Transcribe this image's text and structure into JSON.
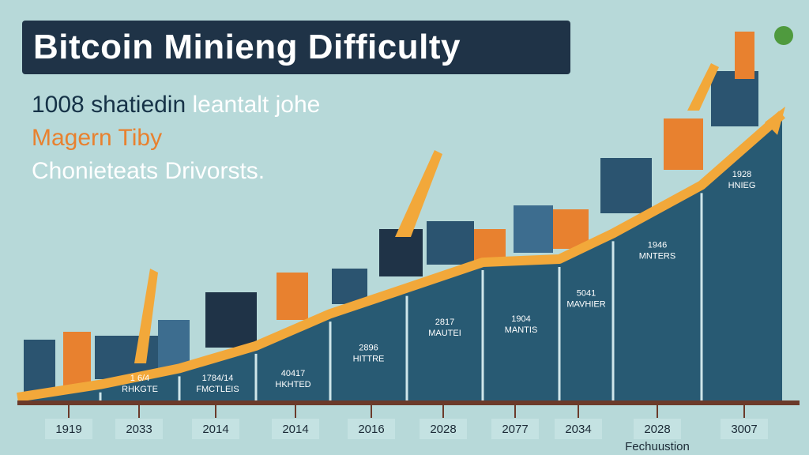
{
  "header": {
    "title": "Bitcoin Minieng Difficulty",
    "subtitle_line1_dark": "1008 shatiedin",
    "subtitle_line1_light": "leantalt johe",
    "subtitle_line2": "Magern Tiby",
    "subtitle_line3": "Chonieteats Drivorsts."
  },
  "colors": {
    "background": "#b7d9d9",
    "title_bg": "#1f3347",
    "area": "#285a73",
    "trend_line": "#f2a83a",
    "accent_orange": "#e8812f",
    "axis": "#6b3a2a"
  },
  "chart_data": {
    "type": "area",
    "title": "Bitcoin Minieng Difficulty",
    "categories": [
      "1919",
      "2033",
      "2014",
      "2014",
      "2016",
      "2028",
      "2077",
      "2034",
      "2028",
      "3007"
    ],
    "values": [
      4,
      9,
      16,
      26,
      34,
      42,
      43,
      51,
      66,
      88
    ],
    "bar_labels": [
      {
        "num": "",
        "word": ""
      },
      {
        "num": "1 6/4",
        "word": "RHKGTE"
      },
      {
        "num": "1784/14",
        "word": "FMCTLEIS"
      },
      {
        "num": "40417",
        "word": "HKHTED"
      },
      {
        "num": "2896",
        "word": "HITTRE"
      },
      {
        "num": "2817",
        "word": "MAUTEI"
      },
      {
        "num": "1904",
        "word": "MANTIS"
      },
      {
        "num": "5041",
        "word": "MAVHIER"
      },
      {
        "num": "1946",
        "word": "MNTERS"
      },
      {
        "num": "1928",
        "word": "HNIEG"
      }
    ],
    "xlabel": "Fechuustion",
    "ylabel": "",
    "grid": false,
    "trend_arrow": true
  }
}
